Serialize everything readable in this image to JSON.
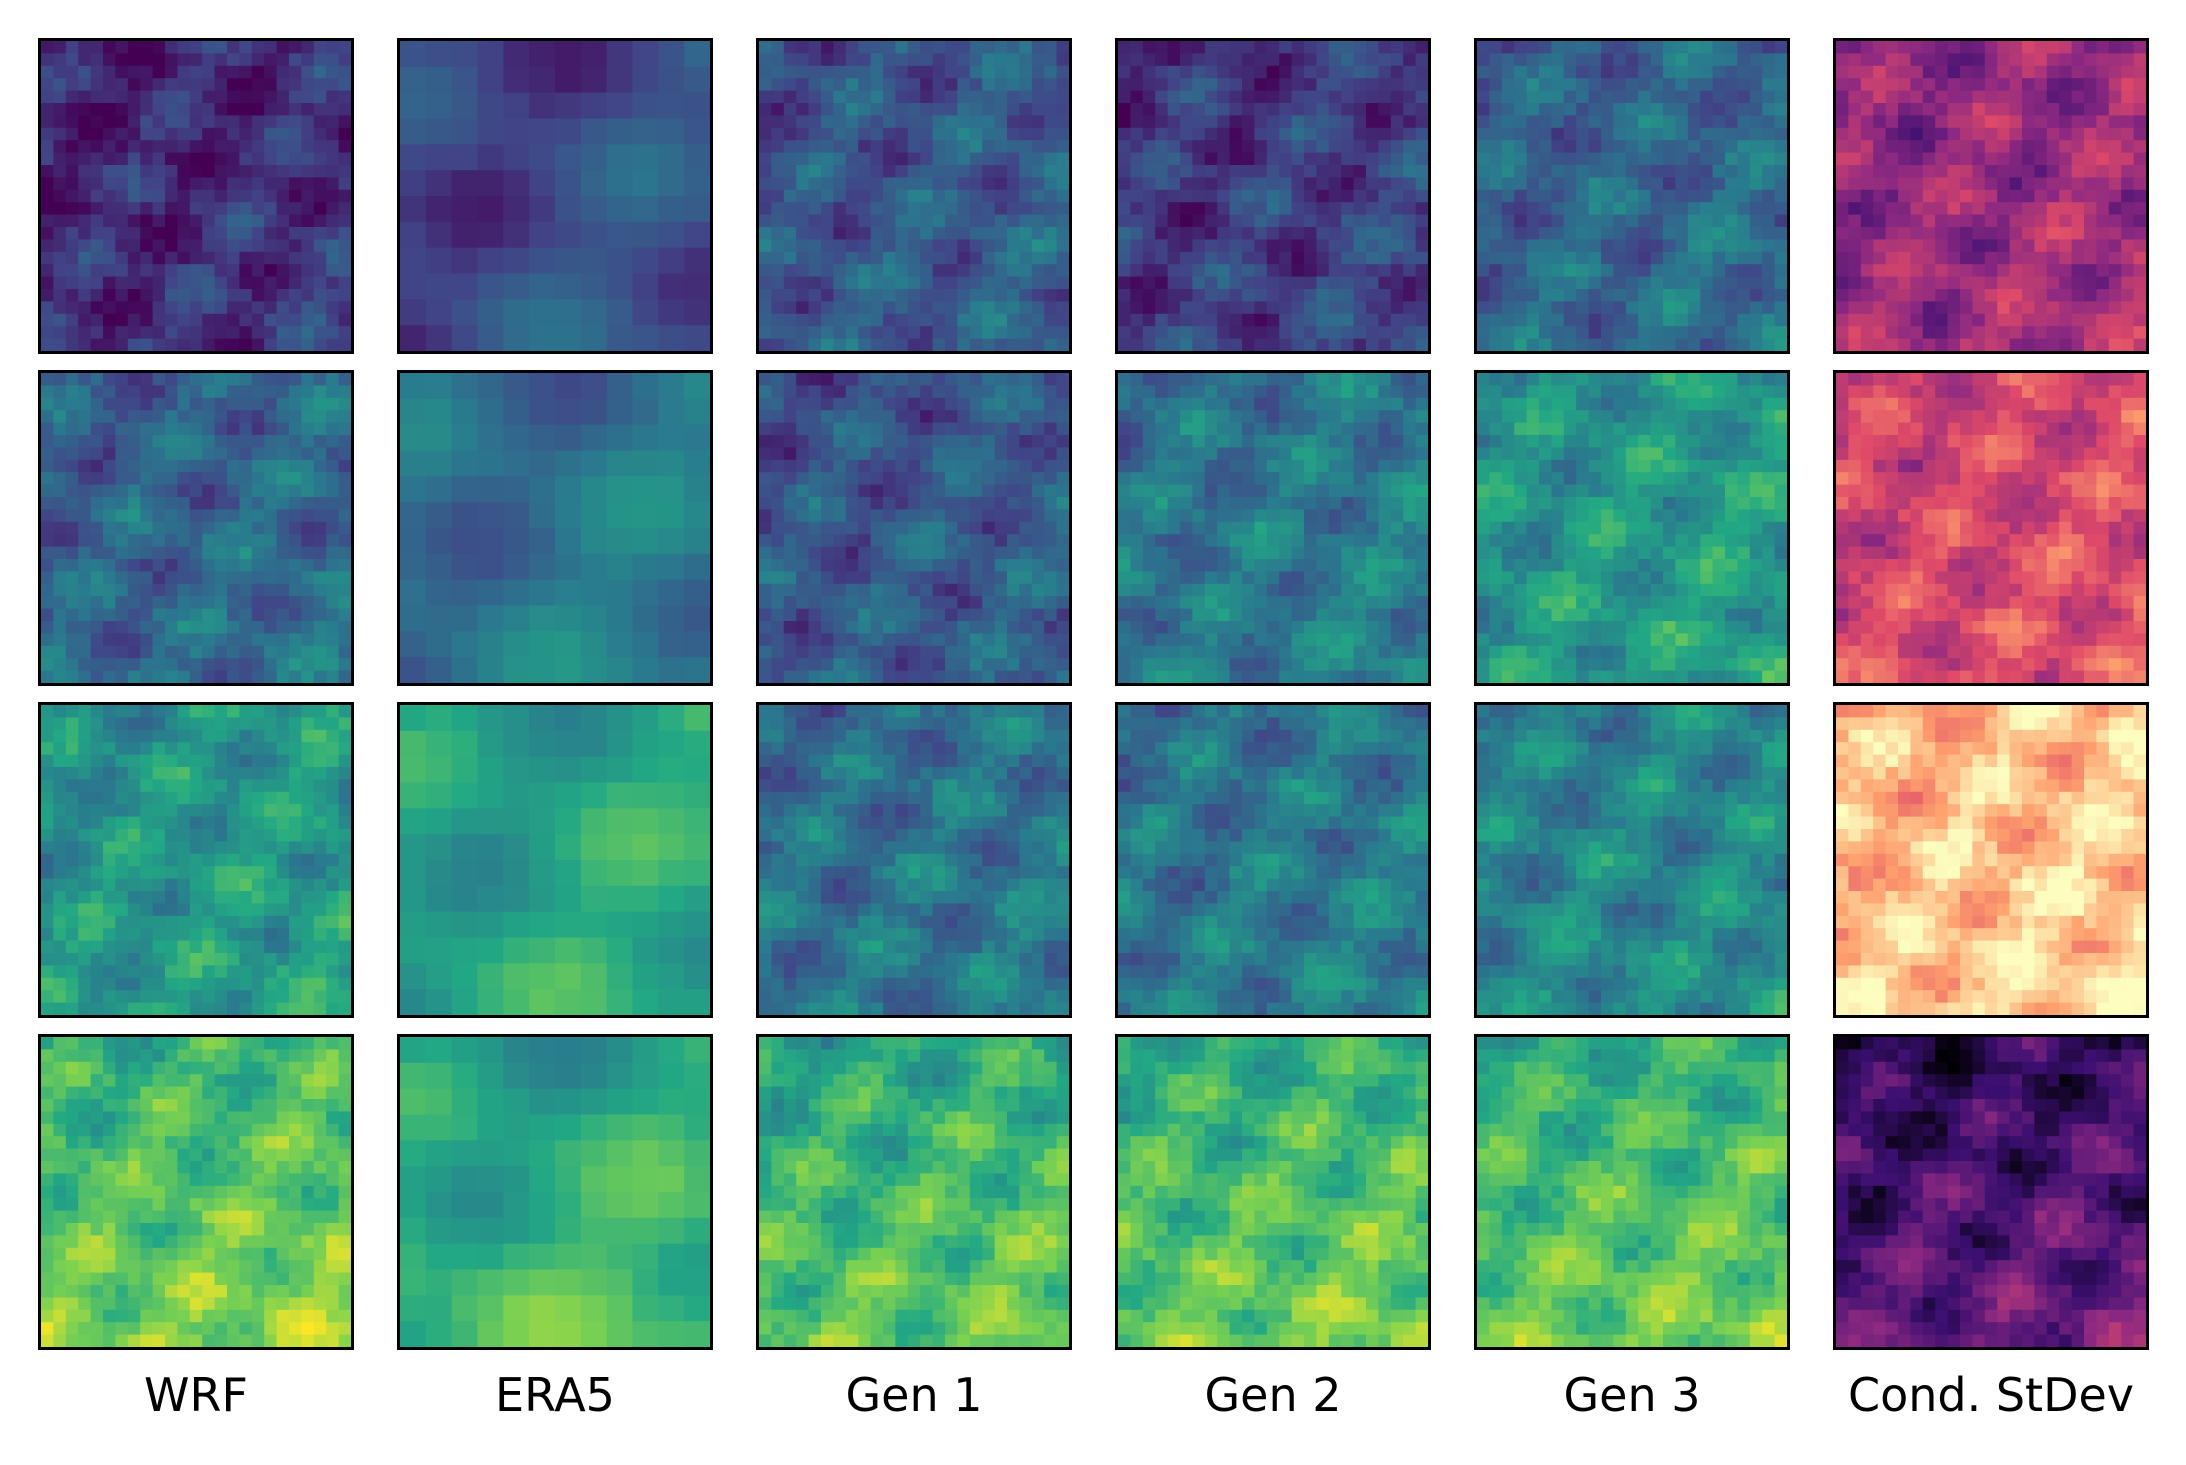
{
  "columns": [
    {
      "label": "WRF",
      "colormap": "viridis"
    },
    {
      "label": "ERA5",
      "colormap": "viridis"
    },
    {
      "label": "Gen 1",
      "colormap": "viridis"
    },
    {
      "label": "Gen 2",
      "colormap": "viridis"
    },
    {
      "label": "Gen 3",
      "colormap": "viridis"
    },
    {
      "label": "Cond. StDev",
      "colormap": "magma"
    }
  ],
  "rows": 4,
  "row_levels": [
    [
      0.15,
      0.25,
      0.3,
      0.2,
      0.35,
      0.45
    ],
    [
      0.35,
      0.4,
      0.3,
      0.42,
      0.55,
      0.6
    ],
    [
      0.55,
      0.6,
      0.4,
      0.42,
      0.48,
      0.9
    ],
    [
      0.75,
      0.65,
      0.7,
      0.72,
      0.72,
      0.25
    ]
  ],
  "colors": {
    "viridis": [
      "#440154",
      "#414487",
      "#2a788e",
      "#22a884",
      "#7ad151",
      "#fde725"
    ],
    "magma": [
      "#000004",
      "#3b0f70",
      "#8c2981",
      "#de4968",
      "#fe9f6d",
      "#fcfdbf"
    ]
  }
}
